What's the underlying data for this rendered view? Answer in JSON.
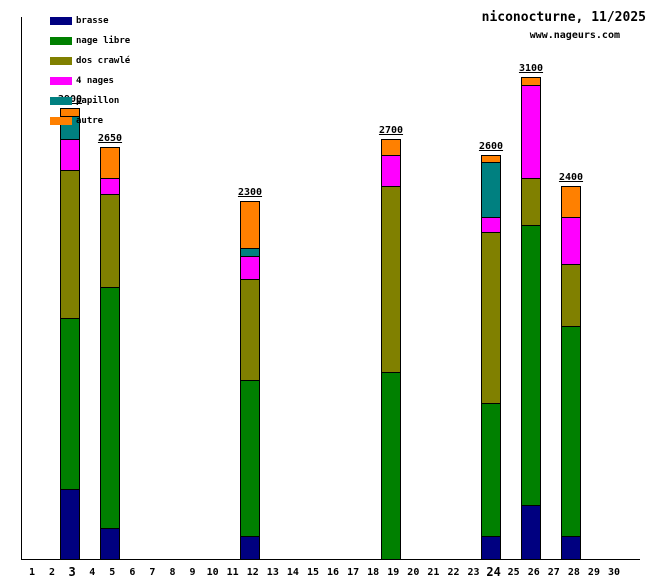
{
  "page": {
    "title": "niconocturne, 11/2025",
    "site_link": "www.nageurs.com"
  },
  "chart_data": {
    "type": "bar",
    "stacked": true,
    "title": "niconocturne, 11/2025",
    "subtitle": "www.nageurs.com",
    "unit": "meters",
    "grid": false,
    "y_axis_labels_visible": false,
    "x_ticks": [
      1,
      2,
      3,
      4,
      5,
      6,
      7,
      8,
      9,
      10,
      11,
      12,
      13,
      14,
      15,
      16,
      17,
      18,
      19,
      20,
      21,
      22,
      23,
      24,
      25,
      26,
      27,
      28,
      29,
      30
    ],
    "bold_ticks": [
      3,
      24
    ],
    "implied_y_max": 3500,
    "series_order": [
      "brasse",
      "nage_libre",
      "dos_crawle",
      "quatre_nages",
      "papillon",
      "autre"
    ],
    "legend": [
      {
        "key": "brasse",
        "label": "brasse",
        "color": "#000080"
      },
      {
        "key": "nage_libre",
        "label": "nage libre",
        "color": "#008000"
      },
      {
        "key": "dos_crawle",
        "label": "dos crawlé",
        "color": "#808000"
      },
      {
        "key": "quatre_nages",
        "label": "4 nages",
        "color": "#ff00ff"
      },
      {
        "key": "papillon",
        "label": "papillon",
        "color": "#008080"
      },
      {
        "key": "autre",
        "label": "autre",
        "color": "#ff8000"
      }
    ],
    "bars": [
      {
        "day": 3,
        "total": 2900,
        "label": "2900",
        "segments": {
          "brasse": 450,
          "nage_libre": 1100,
          "dos_crawle": 950,
          "quatre_nages": 200,
          "papillon": 150,
          "autre": 50
        }
      },
      {
        "day": 5,
        "total": 2650,
        "label": "2650",
        "segments": {
          "brasse": 200,
          "nage_libre": 1550,
          "dos_crawle": 600,
          "quatre_nages": 100,
          "papillon": 0,
          "autre": 200
        }
      },
      {
        "day": 12,
        "total": 2300,
        "label": "2300",
        "segments": {
          "brasse": 150,
          "nage_libre": 1000,
          "dos_crawle": 650,
          "quatre_nages": 150,
          "papillon": 50,
          "autre": 300
        }
      },
      {
        "day": 19,
        "total": 2700,
        "label": "2700",
        "segments": {
          "brasse": 0,
          "nage_libre": 1200,
          "dos_crawle": 1200,
          "quatre_nages": 200,
          "papillon": 0,
          "autre": 100
        }
      },
      {
        "day": 24,
        "total": 2600,
        "label": "2600",
        "segments": {
          "brasse": 150,
          "nage_libre": 850,
          "dos_crawle": 1100,
          "quatre_nages": 100,
          "papillon": 350,
          "autre": 50
        }
      },
      {
        "day": 26,
        "total": 3100,
        "label": "3100",
        "segments": {
          "brasse": 350,
          "nage_libre": 1800,
          "dos_crawle": 300,
          "quatre_nages": 600,
          "papillon": 0,
          "autre": 50
        }
      },
      {
        "day": 28,
        "total": 2400,
        "label": "2400",
        "segments": {
          "brasse": 150,
          "nage_libre": 1350,
          "dos_crawle": 400,
          "quatre_nages": 300,
          "papillon": 0,
          "autre": 200
        }
      }
    ]
  }
}
